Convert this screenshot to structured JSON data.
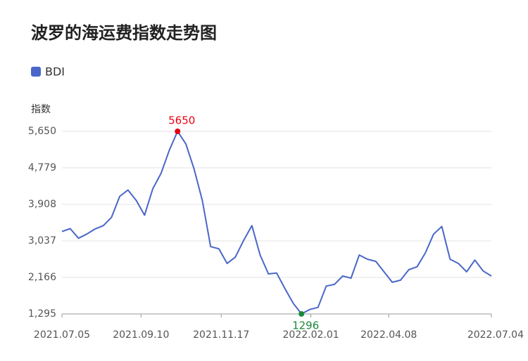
{
  "chart_data": {
    "type": "line",
    "title": "波罗的海运费指数走势图",
    "y_label": "指数",
    "legend": "top-left",
    "grid": true,
    "x": [
      "2021.07.05",
      "2021.07.12",
      "2021.07.19",
      "2021.07.26",
      "2021.08.02",
      "2021.08.09",
      "2021.08.16",
      "2021.08.23",
      "2021.08.30",
      "2021.09.06",
      "2021.09.13",
      "2021.09.20",
      "2021.09.27",
      "2021.10.04",
      "2021.10.11",
      "2021.10.18",
      "2021.10.25",
      "2021.11.01",
      "2021.11.08",
      "2021.11.15",
      "2021.11.22",
      "2021.11.29",
      "2021.12.06",
      "2021.12.13",
      "2021.12.20",
      "2021.12.27",
      "2022.01.03",
      "2022.01.10",
      "2022.01.17",
      "2022.01.24",
      "2022.01.31",
      "2022.02.07",
      "2022.02.14",
      "2022.02.21",
      "2022.02.28",
      "2022.03.07",
      "2022.03.14",
      "2022.03.21",
      "2022.03.28",
      "2022.04.04",
      "2022.04.11",
      "2022.04.18",
      "2022.04.25",
      "2022.05.02",
      "2022.05.09",
      "2022.05.16",
      "2022.05.23",
      "2022.05.30",
      "2022.06.06",
      "2022.06.13",
      "2022.06.20",
      "2022.06.27",
      "2022.07.04"
    ],
    "series": [
      {
        "name": "BDI",
        "color": "#4a66c8",
        "values": [
          3260,
          3330,
          3100,
          3200,
          3320,
          3400,
          3600,
          4100,
          4250,
          4000,
          3650,
          4280,
          4650,
          5200,
          5650,
          5350,
          4750,
          4000,
          2900,
          2850,
          2500,
          2650,
          3050,
          3400,
          2700,
          2250,
          2270,
          1900,
          1550,
          1296,
          1400,
          1450,
          1960,
          2000,
          2200,
          2150,
          2700,
          2600,
          2550,
          2300,
          2050,
          2100,
          2350,
          2420,
          2750,
          3200,
          3380,
          2600,
          2500,
          2300,
          2580,
          2320,
          2200
        ]
      }
    ],
    "annotations": [
      {
        "x": "2021.10.11",
        "label": "5650",
        "color": "#e60012"
      },
      {
        "x": "2022.01.24",
        "label": "1296",
        "color": "#1a8a3a"
      }
    ],
    "ylim": [
      1295,
      5650
    ],
    "yticks": [
      {
        "value": 1295,
        "label": "1,295"
      },
      {
        "value": 2166,
        "label": "2,166"
      },
      {
        "value": 3037,
        "label": "3,037"
      },
      {
        "value": 3908,
        "label": "3,908"
      },
      {
        "value": 4779,
        "label": "4,779"
      },
      {
        "value": 5650,
        "label": "5,650"
      }
    ],
    "xticks": [
      "2021.07.05",
      "2021.09.10",
      "2021.11.17",
      "2022.02.01",
      "2022.04.08",
      "2022.07.04"
    ]
  }
}
